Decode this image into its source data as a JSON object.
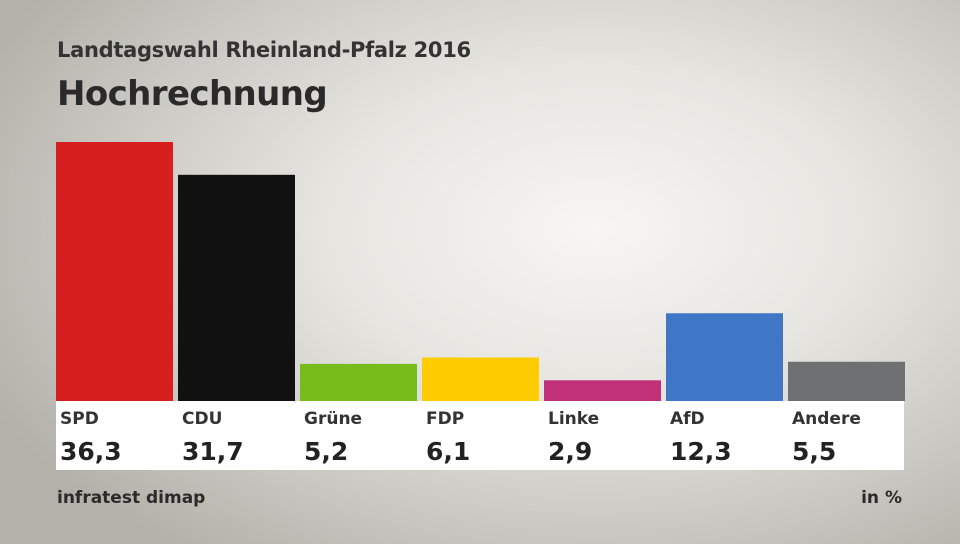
{
  "header": {
    "subtitle": "Landtagswahl Rheinland-Pfalz 2016",
    "title": "Hochrechnung"
  },
  "footer": {
    "source": "infratest dimap",
    "unit": "in %"
  },
  "chart_data": {
    "type": "bar",
    "title": "Hochrechnung",
    "subtitle": "Landtagswahl Rheinland-Pfalz 2016",
    "categories": [
      "SPD",
      "CDU",
      "Grüne",
      "FDP",
      "Linke",
      "AfD",
      "Andere"
    ],
    "values": [
      36.3,
      31.7,
      5.2,
      6.1,
      2.9,
      12.3,
      5.5
    ],
    "value_labels": [
      "36,3",
      "31,7",
      "5,2",
      "6,1",
      "2,9",
      "12,3",
      "5,5"
    ],
    "colors": [
      "#d81f1f",
      "#111111",
      "#78bc1c",
      "#ffcc00",
      "#c1317a",
      "#3f76c6",
      "#6f7072"
    ],
    "ylim": [
      0,
      36.3
    ],
    "unit": "in %",
    "grid": false,
    "legend": "none"
  }
}
